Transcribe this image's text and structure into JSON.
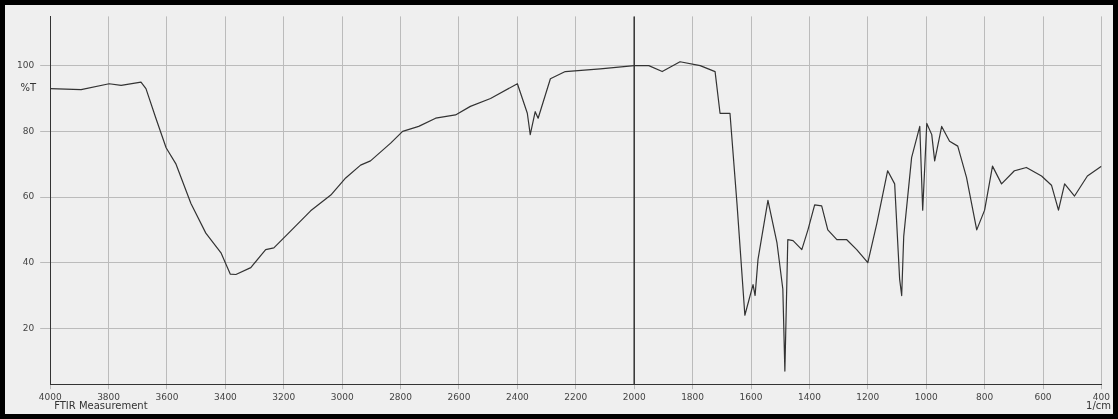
{
  "chart_data": {
    "type": "line",
    "xlabel": "1/cm",
    "ylabel": "%T",
    "annotations": [
      "FTIR Measurement"
    ],
    "xlim": [
      4000,
      400
    ],
    "ylim": [
      3,
      115
    ],
    "xticks": [
      4000,
      3800,
      3600,
      3400,
      3200,
      3000,
      2800,
      2600,
      2400,
      2200,
      2000,
      1800,
      1600,
      1400,
      1200,
      1000,
      800,
      600,
      400
    ],
    "yticks": [
      20,
      40,
      60,
      80,
      100
    ],
    "grid": true,
    "legend": false,
    "marker": "none",
    "line_style": "solid",
    "ref_lines": [
      {
        "axis": "x",
        "value": 2000,
        "color": "#333333",
        "line_style": "solid"
      }
    ],
    "series": [
      {
        "color": "#333333",
        "x": [
          4000,
          3894,
          3798,
          3757,
          3689,
          3672,
          3638,
          3603,
          3569,
          3518,
          3467,
          3415,
          3383,
          3364,
          3313,
          3262,
          3234,
          3176,
          3108,
          3039,
          2988,
          2937,
          2903,
          2834,
          2793,
          2738,
          2680,
          2612,
          2561,
          2492,
          2400,
          2366,
          2356,
          2339,
          2329,
          2287,
          2236,
          2116,
          2000,
          1950,
          1904,
          1843,
          1774,
          1723,
          1706,
          1689,
          1672,
          1648,
          1621,
          1593,
          1586,
          1576,
          1542,
          1511,
          1491,
          1484,
          1474,
          1456,
          1426,
          1405,
          1382,
          1358,
          1337,
          1306,
          1272,
          1238,
          1200,
          1169,
          1132,
          1108,
          1091,
          1084,
          1077,
          1050,
          1022,
          1012,
          998,
          981,
          971,
          947,
          920,
          892,
          862,
          827,
          800,
          773,
          742,
          698,
          657,
          605,
          571,
          547,
          526,
          492,
          448,
          400
        ],
        "values": [
          93,
          92.7,
          94.5,
          94,
          95,
          93,
          84,
          75,
          70,
          58,
          49,
          43,
          36.5,
          36.4,
          38.5,
          44,
          44.5,
          49.7,
          55.8,
          60.6,
          65.8,
          69.7,
          71,
          76.4,
          80,
          81.5,
          84,
          85,
          87.6,
          90,
          94.5,
          85.5,
          79,
          86,
          84,
          96,
          98.2,
          99,
          100,
          100,
          98.2,
          101.2,
          100,
          98.2,
          85.5,
          85.5,
          85.5,
          58,
          24,
          33.3,
          30,
          41,
          59,
          46,
          32,
          7,
          47,
          46.7,
          44,
          50,
          57.6,
          57.3,
          50,
          47,
          47,
          44,
          40,
          52,
          68,
          64,
          35,
          30,
          48,
          72,
          81.5,
          56,
          82.4,
          79,
          71,
          81.5,
          77,
          75.5,
          66,
          50,
          56,
          69.4,
          64,
          68,
          69,
          66.4,
          63.6,
          56,
          64,
          60.3,
          66.4,
          69.4
        ]
      }
    ]
  }
}
